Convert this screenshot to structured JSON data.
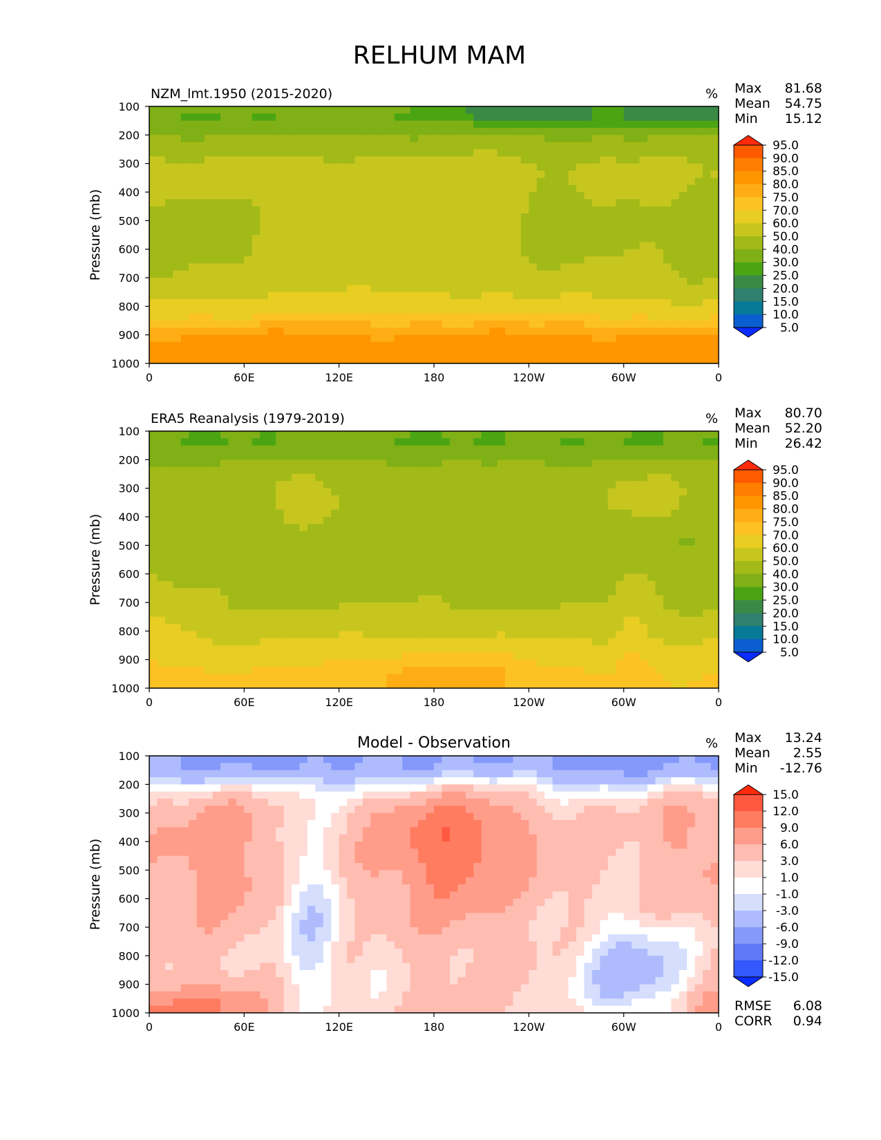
{
  "title": "RELHUM MAM",
  "x_tick_labels": [
    "0",
    "60E",
    "120E",
    "180",
    "120W",
    "60W",
    "0"
  ],
  "y_tick_labels": [
    "100",
    "200",
    "300",
    "400",
    "500",
    "600",
    "700",
    "800",
    "900",
    "1000"
  ],
  "stat_labels": {
    "max": "Max",
    "mean": "Mean",
    "min": "Min",
    "rmse": "RMSE",
    "corr": "CORR"
  },
  "chart_data": [
    {
      "type": "heatmap",
      "title": "NZM_lmt.1950 (2015-2020)",
      "units": "%",
      "ylabel": "Pressure (mb)",
      "xlabel": "",
      "xlim": [
        0,
        360
      ],
      "ylim": [
        1000,
        100
      ],
      "stats": {
        "max": "81.68",
        "mean": "54.75",
        "min": "15.12"
      },
      "colorbar": {
        "levels": [
          "95.0",
          "90.0",
          "85.0",
          "80.0",
          "75.0",
          "70.0",
          "60.0",
          "50.0",
          "40.0",
          "30.0",
          "25.0",
          "20.0",
          "15.0",
          "10.0",
          "5.0"
        ],
        "colors": [
          "#ff2a0a",
          "#ff5a00",
          "#ff7e00",
          "#ff9600",
          "#ffad14",
          "#fcc224",
          "#e8cd22",
          "#c7c61f",
          "#a2ba18",
          "#7fb016",
          "#4ba513",
          "#3a8a46",
          "#2f806e",
          "#077a98",
          "#0a5ecf",
          "#0a2cff"
        ]
      },
      "field": {
        "base": 55,
        "features": [
          {
            "lon": 180,
            "p": 1000,
            "sx": 3000,
            "sp": 130,
            "a": 23
          },
          {
            "lon": 180,
            "p": 900,
            "sx": 3000,
            "sp": 80,
            "a": 8
          },
          {
            "lon": 180,
            "p": 130,
            "sx": 3000,
            "sp": 60,
            "a": -24
          },
          {
            "lon": 180,
            "p": 240,
            "sx": 3000,
            "sp": 50,
            "a": -5
          },
          {
            "lon": 240,
            "p": 110,
            "sx": 35,
            "sp": 40,
            "a": -12
          },
          {
            "lon": 340,
            "p": 110,
            "sx": 30,
            "sp": 40,
            "a": -8
          },
          {
            "lon": 40,
            "p": 560,
            "sx": 25,
            "sp": 130,
            "a": -9
          },
          {
            "lon": 260,
            "p": 520,
            "sx": 28,
            "sp": 140,
            "a": -9
          },
          {
            "lon": 350,
            "p": 580,
            "sx": 30,
            "sp": 160,
            "a": -9
          },
          {
            "lon": 0,
            "p": 600,
            "sx": 12,
            "sp": 150,
            "a": -7
          },
          {
            "lon": 215,
            "p": 320,
            "sx": 8,
            "sp": 40,
            "a": 9
          }
        ]
      }
    },
    {
      "type": "heatmap",
      "title": "ERA5 Reanalysis (1979-2019)",
      "units": "%",
      "ylabel": "Pressure (mb)",
      "xlabel": "",
      "xlim": [
        0,
        360
      ],
      "ylim": [
        1000,
        100
      ],
      "stats": {
        "max": "80.70",
        "mean": "52.20",
        "min": "26.42"
      },
      "colorbar": {
        "levels": [
          "95.0",
          "90.0",
          "85.0",
          "80.0",
          "75.0",
          "70.0",
          "60.0",
          "50.0",
          "40.0",
          "30.0",
          "25.0",
          "20.0",
          "15.0",
          "10.0",
          "5.0"
        ],
        "colors": [
          "#ff2a0a",
          "#ff5a00",
          "#ff7e00",
          "#ff9600",
          "#ffad14",
          "#fcc224",
          "#e8cd22",
          "#c7c61f",
          "#a2ba18",
          "#7fb016",
          "#4ba513",
          "#3a8a46",
          "#2f806e",
          "#077a98",
          "#0a5ecf",
          "#0a2cff"
        ]
      },
      "field": {
        "base": 46,
        "features": [
          {
            "lon": 180,
            "p": 1000,
            "sx": 3000,
            "sp": 150,
            "a": 24
          },
          {
            "lon": 180,
            "p": 930,
            "sx": 60,
            "sp": 80,
            "a": 8
          },
          {
            "lon": 180,
            "p": 130,
            "sx": 3000,
            "sp": 60,
            "a": -16
          },
          {
            "lon": 100,
            "p": 330,
            "sx": 25,
            "sp": 90,
            "a": 7
          },
          {
            "lon": 315,
            "p": 320,
            "sx": 20,
            "sp": 80,
            "a": 7
          },
          {
            "lon": 0,
            "p": 780,
            "sx": 20,
            "sp": 140,
            "a": 8
          },
          {
            "lon": 305,
            "p": 780,
            "sx": 8,
            "sp": 150,
            "a": 8
          },
          {
            "lon": 340,
            "p": 490,
            "sx": 6,
            "sp": 50,
            "a": -7
          },
          {
            "lon": 240,
            "p": 500,
            "sx": 5,
            "sp": 50,
            "a": -6
          }
        ]
      }
    },
    {
      "type": "heatmap",
      "title": "Model - Observation",
      "units": "%",
      "ylabel": "Pressure (mb)",
      "xlabel": "",
      "xlim": [
        0,
        360
      ],
      "ylim": [
        1000,
        100
      ],
      "stats": {
        "max": "13.24",
        "mean": "2.55",
        "min": "-12.76",
        "rmse": "6.08",
        "corr": "0.94"
      },
      "colorbar": {
        "levels": [
          "15.0",
          "12.0",
          "9.0",
          "6.0",
          "3.0",
          "1.0",
          "-1.0",
          "-3.0",
          "-6.0",
          "-9.0",
          "-12.0",
          "-15.0"
        ],
        "colors": [
          "#ff2a0a",
          "#ff5840",
          "#ff7c60",
          "#ff9c8a",
          "#ffbcb0",
          "#ffdcd6",
          "#ffffff",
          "#d6defe",
          "#aebcfe",
          "#8599fb",
          "#5f79fa",
          "#3358fb",
          "#0a2cff"
        ]
      },
      "field": {
        "base": 3,
        "features": [
          {
            "lon": 180,
            "p": 120,
            "sx": 3000,
            "sp": 70,
            "a": -10
          },
          {
            "lon": 45,
            "p": 450,
            "sx": 30,
            "sp": 180,
            "a": 5
          },
          {
            "lon": 190,
            "p": 450,
            "sx": 40,
            "sp": 200,
            "a": 6
          },
          {
            "lon": 195,
            "p": 380,
            "sx": 25,
            "sp": 100,
            "a": 3
          },
          {
            "lon": 345,
            "p": 400,
            "sx": 20,
            "sp": 170,
            "a": 4
          },
          {
            "lon": 100,
            "p": 650,
            "sx": 14,
            "sp": 250,
            "a": -6
          },
          {
            "lon": 305,
            "p": 850,
            "sx": 25,
            "sp": 120,
            "a": -8
          },
          {
            "lon": 15,
            "p": 1000,
            "sx": 40,
            "sp": 70,
            "a": 8
          },
          {
            "lon": 360,
            "p": 1000,
            "sx": 15,
            "sp": 60,
            "a": 6
          },
          {
            "lon": 140,
            "p": 780,
            "sx": 12,
            "sp": 120,
            "a": -2
          }
        ]
      }
    }
  ]
}
